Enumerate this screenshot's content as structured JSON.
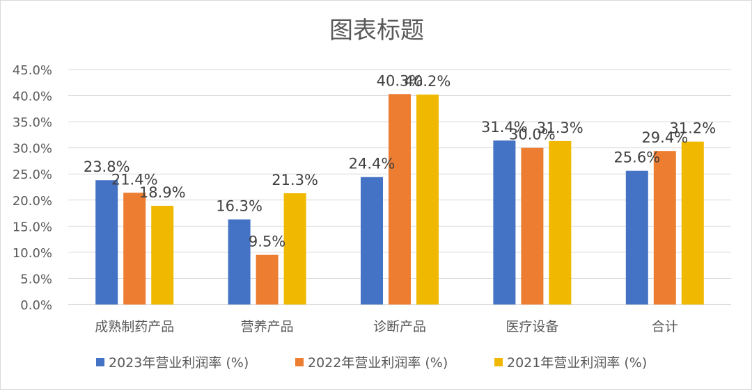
{
  "chart_data": {
    "type": "bar",
    "title": "图表标题",
    "categories": [
      "成熟制药产品",
      "营养产品",
      "诊断产品",
      "医疗设备",
      "合计"
    ],
    "series": [
      {
        "name": "2023年营业利润率 (%)",
        "color": "#4472C4",
        "values": [
          23.8,
          16.3,
          24.4,
          31.4,
          25.6
        ],
        "labels": [
          "23.8%",
          "16.3%",
          "24.4%",
          "31.4%",
          "25.6%"
        ]
      },
      {
        "name": "2022年营业利润率 (%)",
        "color": "#ED7D31",
        "values": [
          21.4,
          9.5,
          40.3,
          30.0,
          29.4
        ],
        "labels": [
          "21.4%",
          "9.5%",
          "40.3%",
          "30.0%",
          "29.4%"
        ]
      },
      {
        "name": "2021年营业利润率 (%)",
        "color": "#F0B800",
        "values": [
          18.9,
          21.3,
          40.2,
          31.3,
          31.2
        ],
        "labels": [
          "18.9%",
          "21.3%",
          "40.2%",
          "31.3%",
          "31.2%"
        ]
      }
    ],
    "ylim": [
      0,
      45
    ],
    "yticks": [
      "0.0%",
      "5.0%",
      "10.0%",
      "15.0%",
      "20.0%",
      "25.0%",
      "30.0%",
      "35.0%",
      "40.0%",
      "45.0%"
    ],
    "grid": true,
    "legend_position": "bottom"
  }
}
